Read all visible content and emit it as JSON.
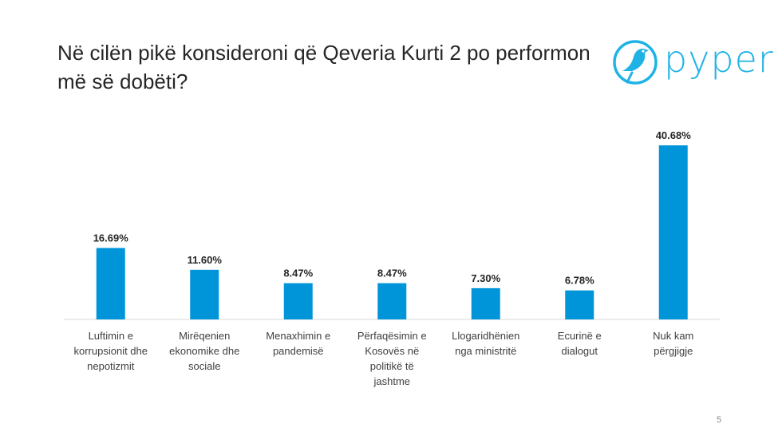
{
  "title": "Në cilën pikë konsideroni që Qeveria Kurti 2 po performon më së dobëti?",
  "logo": {
    "text": "pyper",
    "icon": "bird-icon",
    "color": "#1fb3e5"
  },
  "page_number": "5",
  "chart_data": {
    "type": "bar",
    "title": "Në cilën pikë konsideroni që Qeveria Kurti 2 po performon më së dobëti?",
    "xlabel": "",
    "ylabel": "",
    "ylim": [
      0,
      45
    ],
    "grid": false,
    "bar_color": "#0095d9",
    "categories": [
      [
        "Luftimin e",
        "korrupsionit dhe",
        "nepotizmit"
      ],
      [
        "Mirëqenien",
        "ekonomike dhe",
        "sociale"
      ],
      [
        "Menaxhimin e",
        "pandemisë"
      ],
      [
        "Përfaqësimin e",
        "Kosovës në",
        "politikë të",
        "jashtme"
      ],
      [
        "Llogaridhënien",
        "nga ministritë"
      ],
      [
        "Ecurinë e",
        "dialogut"
      ],
      [
        "Nuk kam",
        "përgjigje"
      ]
    ],
    "values": [
      16.69,
      11.6,
      8.47,
      8.47,
      7.3,
      6.78,
      40.68
    ],
    "value_labels": [
      "16.69%",
      "11.60%",
      "8.47%",
      "8.47%",
      "7.30%",
      "6.78%",
      "40.68%"
    ]
  }
}
